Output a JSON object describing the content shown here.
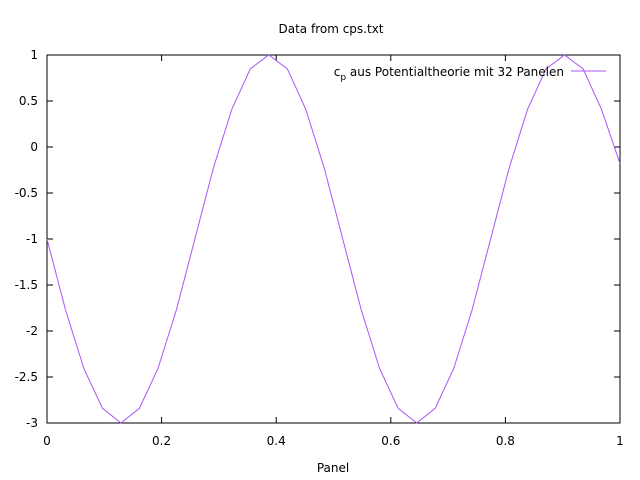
{
  "chart_data": {
    "type": "line",
    "title": "Data from cps.txt",
    "xlabel": "Panel",
    "ylabel": "",
    "xlim": [
      0,
      1
    ],
    "ylim": [
      -3,
      1
    ],
    "xticks": [
      "0",
      "0.2",
      "0.4",
      "0.6",
      "0.8",
      "1"
    ],
    "yticks": [
      "1",
      "0.5",
      "0",
      "-0.5",
      "-1",
      "-1.5",
      "-2",
      "-2.5",
      "-3"
    ],
    "grid": false,
    "legend_position": "top-right",
    "series": [
      {
        "legend_main": "c",
        "legend_sub": "p",
        "legend_rest": " aus Potentialtheorie mit 32 Panelen",
        "color": "#a855f7",
        "x": [
          0,
          0.0323,
          0.0645,
          0.0968,
          0.129,
          0.1613,
          0.1935,
          0.2258,
          0.2581,
          0.2903,
          0.3226,
          0.3548,
          0.3871,
          0.4194,
          0.4516,
          0.4839,
          0.5161,
          0.5484,
          0.5806,
          0.6129,
          0.6452,
          0.6774,
          0.7097,
          0.7419,
          0.7742,
          0.8065,
          0.8387,
          0.871,
          0.9032,
          0.9355,
          0.9677,
          1.0
        ],
        "y": [
          -1.0,
          -1.77,
          -2.41,
          -2.84,
          -3.0,
          -2.84,
          -2.41,
          -1.77,
          -1.0,
          -0.23,
          0.41,
          0.85,
          1.0,
          0.85,
          0.41,
          -0.23,
          -1.0,
          -1.77,
          -2.41,
          -2.84,
          -3.0,
          -2.84,
          -2.41,
          -1.77,
          -1.0,
          -0.23,
          0.41,
          0.85,
          1.0,
          0.85,
          0.41,
          -0.18
        ]
      }
    ]
  }
}
